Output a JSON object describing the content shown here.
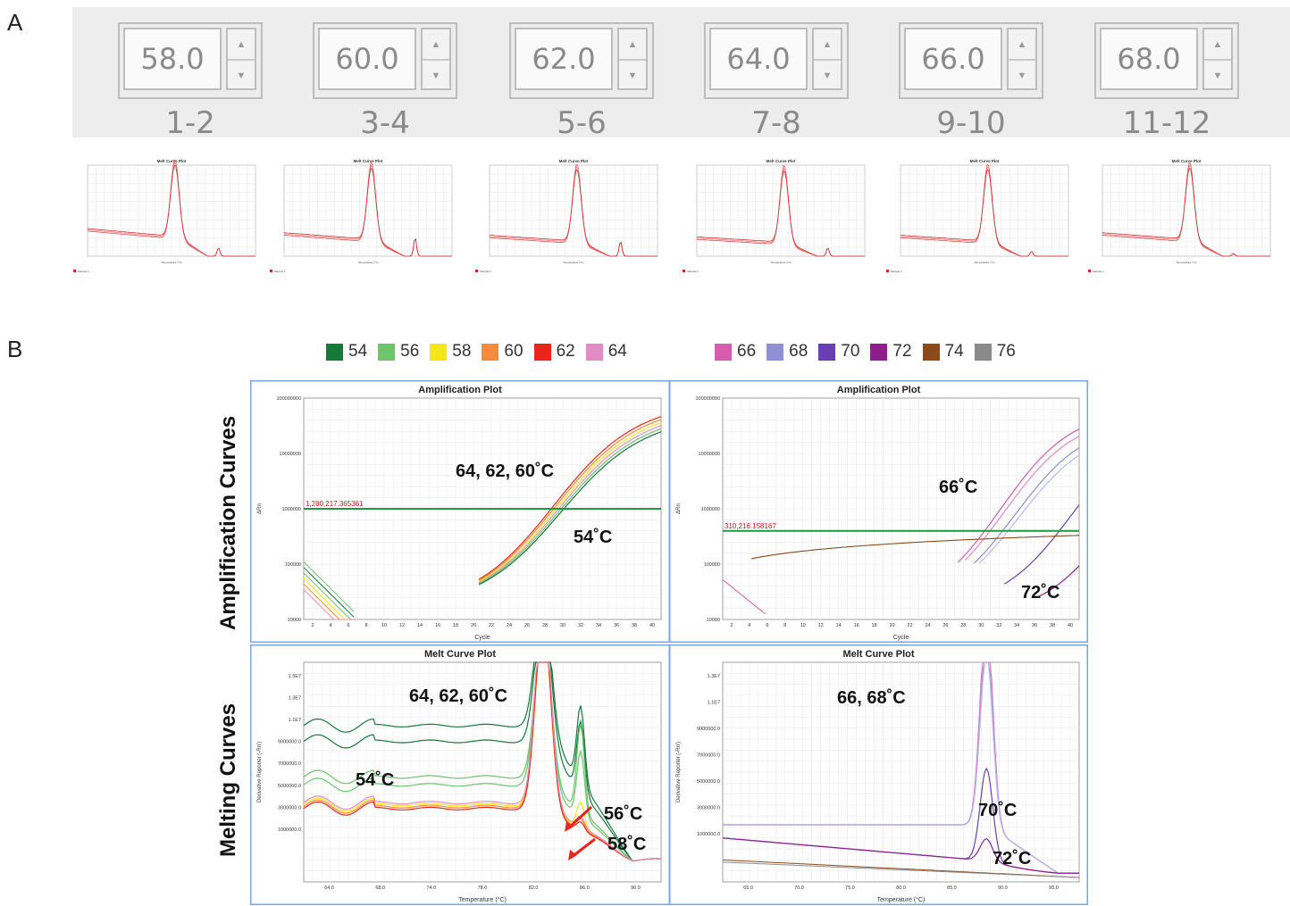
{
  "panel_a": {
    "letter": "A",
    "steppers": [
      {
        "value": "58.0",
        "range": "1-2"
      },
      {
        "value": "60.0",
        "range": "3-4"
      },
      {
        "value": "62.0",
        "range": "5-6"
      },
      {
        "value": "64.0",
        "range": "7-8"
      },
      {
        "value": "66.0",
        "range": "9-10"
      },
      {
        "value": "68.0",
        "range": "11-12"
      }
    ],
    "mini_plot_title": "Melt Curve Plot",
    "mini_plot_xlabel": "Temperature (°C)",
    "mini_plot_legend": "Sample 1",
    "stepper_icons": {
      "up": "arrow-up-icon",
      "down": "arrow-down-icon"
    }
  },
  "panel_b": {
    "letter": "B",
    "legend_left": [
      {
        "label": "54",
        "color": "#137a3a"
      },
      {
        "label": "56",
        "color": "#6cc46c"
      },
      {
        "label": "58",
        "color": "#f5e61a"
      },
      {
        "label": "60",
        "color": "#f58a3c"
      },
      {
        "label": "62",
        "color": "#e8261c"
      },
      {
        "label": "64",
        "color": "#e38bc4"
      }
    ],
    "legend_right": [
      {
        "label": "66",
        "color": "#d45fb0"
      },
      {
        "label": "68",
        "color": "#8f8fd6"
      },
      {
        "label": "70",
        "color": "#6a3fb5"
      },
      {
        "label": "72",
        "color": "#8e1e8c"
      },
      {
        "label": "74",
        "color": "#8b4a1a"
      },
      {
        "label": "76",
        "color": "#8a8a8a"
      }
    ],
    "row_label_top": "Amplification Curves",
    "row_label_bottom": "Melting Curves",
    "amp_left": {
      "title": "Amplification Plot",
      "ylabel": "ΔRn",
      "xlabel": "Cycle",
      "yticks": [
        "100000000",
        "10000000",
        "1000000",
        "100000",
        "10000"
      ],
      "xticks": [
        "2",
        "4",
        "6",
        "8",
        "10",
        "12",
        "14",
        "16",
        "18",
        "20",
        "22",
        "24",
        "26",
        "28",
        "30",
        "32",
        "34",
        "36",
        "38",
        "40"
      ],
      "threshold": "1,280,217.365361",
      "annotations": [
        "64, 62, 60˚C",
        "54˚C"
      ]
    },
    "amp_right": {
      "title": "Amplification Plot",
      "ylabel": "ΔRn",
      "xlabel": "Cycle",
      "yticks": [
        "100000000",
        "10000000",
        "1000000",
        "100000",
        "10000"
      ],
      "xticks": [
        "2",
        "4",
        "6",
        "8",
        "10",
        "12",
        "14",
        "16",
        "18",
        "20",
        "22",
        "24",
        "26",
        "28",
        "30",
        "32",
        "34",
        "36",
        "38",
        "40"
      ],
      "threshold": "310,216.158167",
      "annotations": [
        "66˚C",
        "72˚C"
      ]
    },
    "melt_left": {
      "title": "Melt Curve Plot",
      "ylabel": "Derivative Reporter (-Rn')",
      "xlabel": "Temperature (°C)",
      "yticks": [
        "1.5E7",
        "1.3E7",
        "1.1E7",
        "9000000.0",
        "7000000.0",
        "5000000.0",
        "3000000.0",
        "1000000.0"
      ],
      "xticks": [
        "64.0",
        "68.0",
        "74.0",
        "78.0",
        "82.0",
        "86.0",
        "90.0"
      ],
      "annotations": [
        "64, 62, 60˚C",
        "54˚C",
        "56˚C",
        "58˚C"
      ]
    },
    "melt_right": {
      "title": "Melt Curve Plot",
      "ylabel": "Derivative Reporter (-Rn')",
      "xlabel": "Temperature (°C)",
      "yticks": [
        "1.3E7",
        "1.1E7",
        "9000000.0",
        "7000000.0",
        "5000000.0",
        "3000000.0",
        "1000000.0"
      ],
      "xticks": [
        "65.0",
        "70.0",
        "75.0",
        "80.0",
        "85.0",
        "90.0",
        "95.0"
      ],
      "annotations": [
        "66, 68˚C",
        "70˚C",
        "72˚C"
      ]
    }
  }
}
